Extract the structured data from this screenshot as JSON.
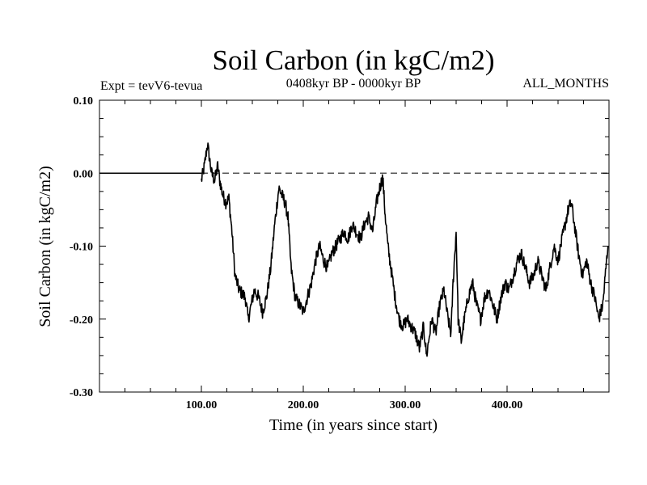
{
  "chart_data": {
    "type": "line",
    "title": "Soil Carbon (in kgC/m2)",
    "subtitle": "0408kyr BP - 0000kyr BP",
    "annotation_left": "Expt = tevV6-tevua",
    "annotation_right": "ALL_MONTHS",
    "xlabel": "Time (in years since start)",
    "ylabel": "Soil Carbon (in kgC/m2)",
    "xlim": [
      0,
      500
    ],
    "ylim": [
      -0.3,
      0.1
    ],
    "xticks": [
      100,
      200,
      300,
      400
    ],
    "xtick_labels": [
      "100.00",
      "200.00",
      "300.00",
      "400.00"
    ],
    "yticks": [
      0.1,
      0.0,
      -0.1,
      -0.2,
      -0.3
    ],
    "ytick_labels": [
      "0.10",
      "0.00",
      "-0.10",
      "-0.20",
      "-0.30"
    ],
    "zero_line_style": "dashed",
    "flat_segment": {
      "x": [
        0,
        100
      ],
      "y": 0.0
    },
    "series": [
      {
        "x": [
          100,
          103,
          106,
          108,
          110,
          113,
          116,
          118,
          121,
          124,
          127,
          130,
          133,
          137,
          140,
          143,
          146,
          149,
          152,
          156,
          160,
          164,
          168,
          172,
          176,
          179,
          182,
          185,
          188,
          192,
          196,
          200,
          204,
          208,
          212,
          216,
          220,
          224,
          228,
          232,
          236,
          240,
          244,
          248,
          252,
          256,
          260,
          264,
          268,
          272,
          275,
          278,
          280,
          283,
          286,
          290,
          294,
          298,
          302,
          306,
          310,
          314,
          318,
          321,
          323,
          326,
          330,
          334,
          338,
          342,
          345,
          347,
          350,
          352,
          355,
          358,
          362,
          366,
          370,
          374,
          378,
          382,
          386,
          390,
          394,
          398,
          402,
          406,
          410,
          414,
          418,
          422,
          426,
          430,
          434,
          438,
          442,
          446,
          450,
          454,
          457,
          460,
          463,
          466,
          470,
          474,
          478,
          482,
          486,
          490,
          494,
          497,
          499
        ],
        "y": [
          -0.01,
          0.01,
          0.04,
          0.02,
          0.0,
          -0.01,
          0.01,
          -0.01,
          -0.03,
          -0.04,
          -0.035,
          -0.08,
          -0.14,
          -0.16,
          -0.165,
          -0.17,
          -0.2,
          -0.18,
          -0.16,
          -0.17,
          -0.19,
          -0.17,
          -0.13,
          -0.07,
          -0.02,
          -0.03,
          -0.04,
          -0.06,
          -0.13,
          -0.17,
          -0.18,
          -0.19,
          -0.17,
          -0.15,
          -0.12,
          -0.1,
          -0.12,
          -0.13,
          -0.11,
          -0.1,
          -0.09,
          -0.08,
          -0.09,
          -0.07,
          -0.08,
          -0.09,
          -0.07,
          -0.06,
          -0.08,
          -0.04,
          -0.02,
          -0.005,
          -0.05,
          -0.1,
          -0.13,
          -0.17,
          -0.2,
          -0.21,
          -0.2,
          -0.21,
          -0.22,
          -0.24,
          -0.21,
          -0.25,
          -0.23,
          -0.2,
          -0.22,
          -0.18,
          -0.16,
          -0.2,
          -0.22,
          -0.15,
          -0.08,
          -0.2,
          -0.23,
          -0.2,
          -0.17,
          -0.15,
          -0.18,
          -0.2,
          -0.17,
          -0.16,
          -0.18,
          -0.2,
          -0.17,
          -0.15,
          -0.16,
          -0.14,
          -0.12,
          -0.11,
          -0.13,
          -0.15,
          -0.14,
          -0.12,
          -0.14,
          -0.16,
          -0.13,
          -0.1,
          -0.12,
          -0.09,
          -0.07,
          -0.05,
          -0.04,
          -0.07,
          -0.11,
          -0.14,
          -0.12,
          -0.15,
          -0.17,
          -0.2,
          -0.18,
          -0.13,
          -0.1
        ]
      }
    ]
  }
}
